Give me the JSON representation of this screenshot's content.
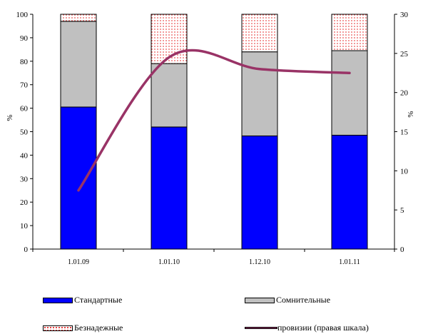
{
  "chart_data": {
    "type": "bar",
    "stacked": true,
    "categories": [
      "1.01.09",
      "1.01.10",
      "1.12.10",
      "1.01.11"
    ],
    "series": [
      {
        "name": "Стандартные",
        "values": [
          60.5,
          52.0,
          48.2,
          48.5
        ],
        "color": "#0000ff"
      },
      {
        "name": "Сомнительные",
        "values": [
          36.5,
          27.0,
          35.8,
          36.0
        ],
        "color": "#c0c0c0"
      },
      {
        "name": "Безнадежные",
        "values": [
          3.0,
          21.0,
          16.0,
          15.5
        ],
        "color": "#e00000",
        "pattern": "dotted"
      }
    ],
    "line_series": {
      "name": "провизии (правая шкала)",
      "values": [
        7.5,
        24.5,
        23.0,
        22.5
      ],
      "axis": "right",
      "color": "#993366"
    },
    "left_axis": {
      "label": "%",
      "ylim": [
        0,
        100
      ],
      "ticks": [
        "0",
        "10",
        "20",
        "30",
        "40",
        "50",
        "60",
        "70",
        "80",
        "90",
        "100"
      ]
    },
    "right_axis": {
      "label": "%",
      "ylim": [
        0,
        30
      ],
      "ticks": [
        "0",
        "5",
        "10",
        "15",
        "20",
        "25",
        "30"
      ]
    },
    "grid": false,
    "legend_position": "bottom"
  }
}
